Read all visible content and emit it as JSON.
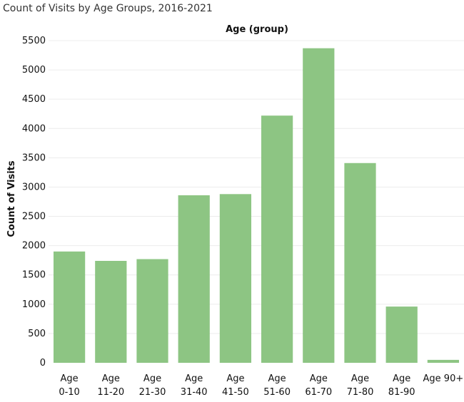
{
  "chart_data": {
    "type": "bar",
    "title": "Count of Visits by Age Groups, 2016-2021",
    "column_header": "Age (group)",
    "ylabel": "Count of Visits",
    "xlabel": "",
    "categories": [
      [
        "Age",
        "0-10"
      ],
      [
        "Age",
        "11-20"
      ],
      [
        "Age",
        "21-30"
      ],
      [
        "Age",
        "31-40"
      ],
      [
        "Age",
        "41-50"
      ],
      [
        "Age",
        "51-60"
      ],
      [
        "Age",
        "61-70"
      ],
      [
        "Age",
        "71-80"
      ],
      [
        "Age",
        "81-90"
      ],
      [
        "Age 90+"
      ]
    ],
    "values": [
      1900,
      1740,
      1770,
      2860,
      2880,
      4220,
      5370,
      3410,
      960,
      50
    ],
    "ylim": [
      0,
      5500
    ],
    "yticks": [
      0,
      500,
      1000,
      1500,
      2000,
      2500,
      3000,
      3500,
      4000,
      4500,
      5000,
      5500
    ],
    "bar_color": "#8dc583",
    "grid": true,
    "grid_color": "#ececec",
    "legend": "none"
  }
}
